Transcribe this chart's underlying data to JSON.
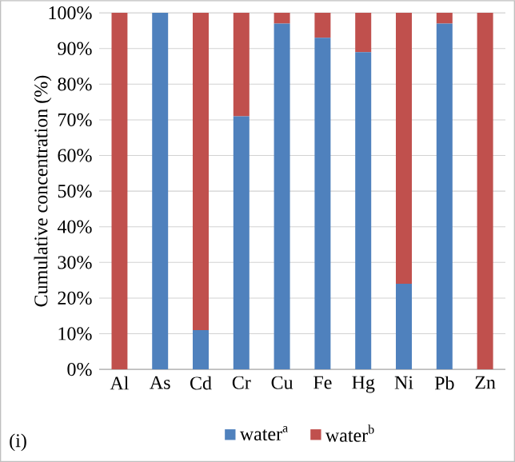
{
  "chart_data": {
    "type": "bar",
    "stacked": true,
    "ylabel": "Cumulative concentration (%)",
    "categories": [
      "Al",
      "As",
      "Cd",
      "Cr",
      "Cu",
      "Fe",
      "Hg",
      "Ni",
      "Pb",
      "Zn"
    ],
    "series": [
      {
        "name": "water$^{a}$",
        "color": "#4f81bd",
        "values": [
          0,
          100,
          11,
          71,
          97,
          93,
          89,
          24,
          97,
          0
        ]
      },
      {
        "name": "water$^{b}$",
        "color": "#c0504d",
        "values": [
          100,
          0,
          89,
          29,
          3,
          7,
          11,
          76,
          3,
          100
        ]
      }
    ],
    "ylim": [
      0,
      100
    ],
    "yticks": [
      {
        "value": 0,
        "label": "0%"
      },
      {
        "value": 10,
        "label": "10%"
      },
      {
        "value": 20,
        "label": "20%"
      },
      {
        "value": 30,
        "label": "30%"
      },
      {
        "value": 40,
        "label": "40%"
      },
      {
        "value": 50,
        "label": "50%"
      },
      {
        "value": 60,
        "label": "60%"
      },
      {
        "value": 70,
        "label": "70%"
      },
      {
        "value": 80,
        "label": "80%"
      },
      {
        "value": 90,
        "label": "90%"
      },
      {
        "value": 100,
        "label": "100%"
      }
    ],
    "grid": "y",
    "legend": "bottom",
    "annotations": [
      "(i)"
    ]
  }
}
